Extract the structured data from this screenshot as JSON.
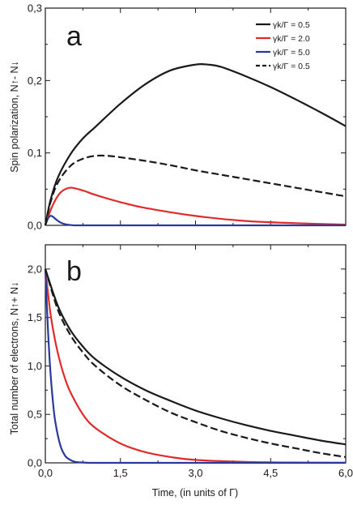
{
  "chart_data": [
    {
      "type": "line",
      "panel_label": "a",
      "ylabel": "Spin polarization, N↑- N↓",
      "xlim": [
        0,
        6
      ],
      "ylim": [
        0,
        0.3
      ],
      "xticks": [
        0,
        1.5,
        3,
        4.5,
        6
      ],
      "xtick_labels": [
        "",
        "",
        "",
        "",
        ""
      ],
      "yticks": [
        0,
        0.1,
        0.2,
        0.3
      ],
      "ytick_labels": [
        "0,0",
        "0,1",
        "0,2",
        "0,3"
      ],
      "grid": false,
      "legend": {
        "placement": "top-right",
        "entries": [
          {
            "label": "γk/Γ = 0.5",
            "color": "#1a1a1a",
            "style": "solid"
          },
          {
            "label": "γk/Γ = 2.0",
            "color": "#e02b2b",
            "style": "solid"
          },
          {
            "label": "γk/Γ = 5.0",
            "color": "#2a3a9a",
            "style": "solid"
          },
          {
            "label": "γk/Γ = 0.5",
            "color": "#1a1a1a",
            "style": "dashed"
          }
        ]
      },
      "series": [
        {
          "color": "#1a1a1a",
          "style": "solid",
          "x": [
            0,
            0.1,
            0.25,
            0.5,
            0.75,
            1.0,
            1.5,
            2.0,
            2.5,
            3.0,
            3.25,
            3.5,
            4.0,
            4.5,
            5.0,
            5.5,
            6.0
          ],
          "y": [
            0,
            0.034,
            0.066,
            0.098,
            0.12,
            0.136,
            0.168,
            0.195,
            0.214,
            0.222,
            0.222,
            0.219,
            0.206,
            0.191,
            0.174,
            0.156,
            0.137
          ]
        },
        {
          "color": "#e02b2b",
          "style": "solid",
          "x": [
            0,
            0.1,
            0.2,
            0.3,
            0.4,
            0.5,
            0.6,
            0.8,
            1.0,
            1.5,
            2.0,
            3.0,
            4.0,
            5.0,
            6.0
          ],
          "y": [
            0,
            0.02,
            0.035,
            0.045,
            0.05,
            0.052,
            0.051,
            0.047,
            0.042,
            0.032,
            0.024,
            0.013,
            0.006,
            0.003,
            0.001
          ]
        },
        {
          "color": "#2a3a9a",
          "style": "solid",
          "x": [
            0,
            0.05,
            0.1,
            0.15,
            0.2,
            0.3,
            0.4,
            0.5,
            0.6,
            1.0,
            2.0,
            4.0,
            6.0
          ],
          "y": [
            0,
            0.009,
            0.013,
            0.012,
            0.009,
            0.004,
            0.0015,
            0.0005,
            0,
            0,
            0,
            0,
            0
          ]
        },
        {
          "color": "#1a1a1a",
          "style": "dashed",
          "x": [
            0,
            0.1,
            0.25,
            0.5,
            0.75,
            1.0,
            1.25,
            1.5,
            2.0,
            2.5,
            3.0,
            3.5,
            4.0,
            4.5,
            5.0,
            5.5,
            6.0
          ],
          "y": [
            0,
            0.031,
            0.059,
            0.082,
            0.092,
            0.096,
            0.096,
            0.094,
            0.089,
            0.083,
            0.076,
            0.07,
            0.064,
            0.058,
            0.052,
            0.046,
            0.04
          ]
        }
      ]
    },
    {
      "type": "line",
      "panel_label": "b",
      "xlabel": "Time, (in units of Γ)",
      "ylabel": "Total number of electrons, N↑+ N↓",
      "xlim": [
        0,
        6
      ],
      "ylim": [
        0,
        2.25
      ],
      "xticks": [
        0,
        1.5,
        3,
        4.5,
        6
      ],
      "xtick_labels": [
        "0,0",
        "1,5",
        "3,0",
        "4,5",
        "6,0"
      ],
      "yticks": [
        0,
        0.5,
        1.0,
        1.5,
        2.0
      ],
      "ytick_labels": [
        "0,0",
        "0,5",
        "1,0",
        "1,5",
        "2,0"
      ],
      "grid": false,
      "series": [
        {
          "color": "#1a1a1a",
          "style": "solid",
          "x": [
            0,
            0.25,
            0.5,
            0.75,
            1.0,
            1.5,
            2.0,
            2.5,
            3.0,
            3.5,
            4.0,
            4.5,
            5.0,
            5.5,
            6.0
          ],
          "y": [
            2.0,
            1.62,
            1.37,
            1.2,
            1.07,
            0.89,
            0.75,
            0.64,
            0.54,
            0.46,
            0.39,
            0.33,
            0.28,
            0.23,
            0.19
          ]
        },
        {
          "color": "#e02b2b",
          "style": "solid",
          "x": [
            0,
            0.1,
            0.2,
            0.3,
            0.4,
            0.5,
            0.75,
            1.0,
            1.5,
            2.0,
            2.5,
            3.0,
            4.0,
            5.0,
            6.0
          ],
          "y": [
            2.0,
            1.55,
            1.25,
            1.03,
            0.86,
            0.73,
            0.5,
            0.36,
            0.2,
            0.11,
            0.06,
            0.03,
            0.01,
            0.003,
            0.001
          ]
        },
        {
          "color": "#2a3a9a",
          "style": "solid",
          "x": [
            0,
            0.05,
            0.1,
            0.15,
            0.2,
            0.3,
            0.4,
            0.5,
            0.6,
            0.8,
            1.0,
            2.0,
            4.0,
            6.0
          ],
          "y": [
            2.0,
            1.4,
            0.95,
            0.64,
            0.42,
            0.18,
            0.07,
            0.03,
            0.01,
            0.002,
            0,
            0,
            0,
            0
          ]
        },
        {
          "color": "#1a1a1a",
          "style": "dashed",
          "x": [
            0,
            0.25,
            0.5,
            0.75,
            1.0,
            1.5,
            2.0,
            2.5,
            3.0,
            3.5,
            4.0,
            4.5,
            5.0,
            5.5,
            6.0
          ],
          "y": [
            2.0,
            1.58,
            1.32,
            1.14,
            1.0,
            0.8,
            0.65,
            0.52,
            0.42,
            0.33,
            0.26,
            0.2,
            0.15,
            0.1,
            0.06
          ]
        }
      ]
    }
  ]
}
